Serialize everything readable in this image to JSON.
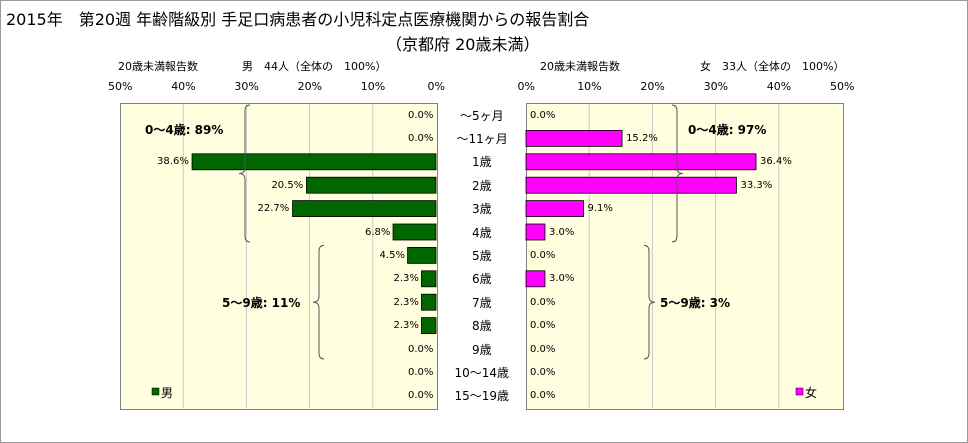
{
  "header": {
    "title_line1": "2015年　第20週 年齢階級別 手足口病患者の小児科定点医療機関からの報告割合",
    "title_line2": "（京都府 20歳未満）"
  },
  "colors": {
    "male": "#006600",
    "female": "#ff00ff",
    "plot_bg": "#ffffe0",
    "grid": "#c8c8c8"
  },
  "chart_data": [
    {
      "type": "bar",
      "orientation": "horizontal",
      "direction": "right-to-left",
      "title": "20歳未満報告数",
      "subtitle": "男　44人（全体の　100%）",
      "legend": "男",
      "legend_position": "bottom-left",
      "xlim": [
        0,
        50
      ],
      "ticks": [
        "50%",
        "40%",
        "30%",
        "20%",
        "10%",
        "0%"
      ],
      "categories": [
        "～5ヶ月",
        "～11ヶ月",
        "1歳",
        "2歳",
        "3歳",
        "4歳",
        "5歳",
        "6歳",
        "7歳",
        "8歳",
        "9歳",
        "10～14歳",
        "15～19歳"
      ],
      "values": [
        0.0,
        0.0,
        38.6,
        20.5,
        22.7,
        6.8,
        4.5,
        2.3,
        2.3,
        2.3,
        0.0,
        0.0,
        0.0
      ],
      "labels": [
        "0.0%",
        "0.0%",
        "38.6%",
        "20.5%",
        "22.7%",
        "6.8%",
        "4.5%",
        "2.3%",
        "2.3%",
        "2.3%",
        "0.0%",
        "0.0%",
        "0.0%"
      ],
      "groups": [
        {
          "label": "0～4歳: 89%",
          "from": 0,
          "to": 5
        },
        {
          "label": "5～9歳: 11%",
          "from": 6,
          "to": 10
        }
      ]
    },
    {
      "type": "bar",
      "orientation": "horizontal",
      "direction": "left-to-right",
      "title": "20歳未満報告数",
      "subtitle": "女　33人（全体の　100%）",
      "legend": "女",
      "legend_position": "bottom-right",
      "xlim": [
        0,
        50
      ],
      "ticks": [
        "0%",
        "10%",
        "20%",
        "30%",
        "40%",
        "50%"
      ],
      "categories": [
        "～5ヶ月",
        "～11ヶ月",
        "1歳",
        "2歳",
        "3歳",
        "4歳",
        "5歳",
        "6歳",
        "7歳",
        "8歳",
        "9歳",
        "10～14歳",
        "15～19歳"
      ],
      "values": [
        0.0,
        15.2,
        36.4,
        33.3,
        9.1,
        3.0,
        0.0,
        3.0,
        0.0,
        0.0,
        0.0,
        0.0,
        0.0
      ],
      "labels": [
        "0.0%",
        "15.2%",
        "36.4%",
        "33.3%",
        "9.1%",
        "3.0%",
        "0.0%",
        "3.0%",
        "0.0%",
        "0.0%",
        "0.0%",
        "0.0%",
        "0.0%"
      ],
      "groups": [
        {
          "label": "0～4歳: 97%",
          "from": 0,
          "to": 5
        },
        {
          "label": "5～9歳: 3%",
          "from": 6,
          "to": 10
        }
      ]
    }
  ]
}
